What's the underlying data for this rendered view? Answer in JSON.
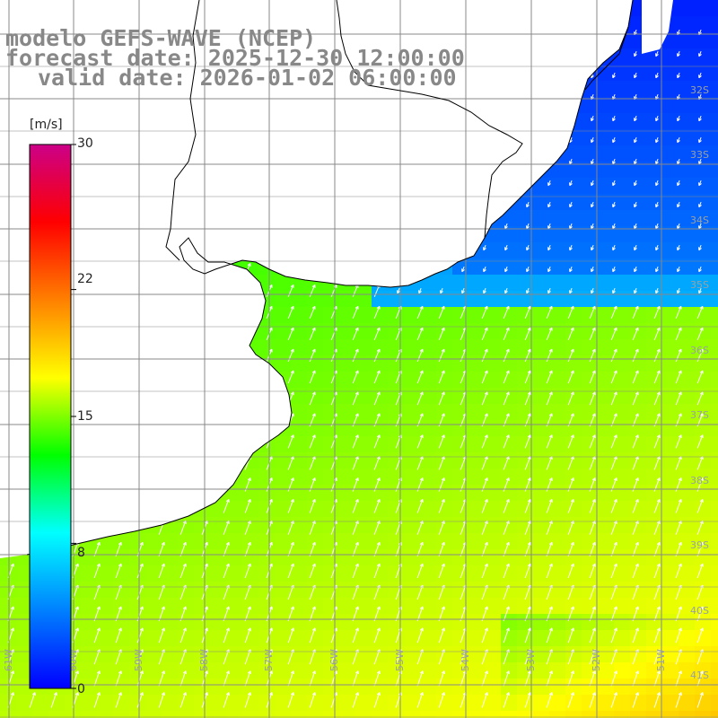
{
  "header": {
    "model_line": "modelo GEFS-WAVE (NCEP)",
    "forecast_line": "forecast date: 2025-12-30 12:00:00",
    "valid_line": "valid date: 2026-01-02 06:00:00"
  },
  "colorbar": {
    "unit": "[m/s]",
    "min": 0,
    "max": 30,
    "tick_labels": [
      "30",
      "22",
      "15",
      "8",
      "0"
    ],
    "tick_values": [
      30,
      22,
      15,
      8,
      0
    ],
    "colors": [
      "#0000ff",
      "#0080ff",
      "#00ffff",
      "#00ff00",
      "#ffff00",
      "#ff8000",
      "#ff0000",
      "#cc0088"
    ]
  },
  "map": {
    "lon_labels": [
      "61W",
      "60W",
      "59W",
      "58W",
      "57W",
      "56W",
      "55W",
      "54W",
      "53W",
      "52W",
      "51W"
    ],
    "lat_labels": [
      "32S",
      "33S",
      "34S",
      "35S",
      "36S",
      "37S",
      "38S",
      "39S",
      "40S",
      "41S"
    ],
    "land_color": "#ffffff",
    "coast_color": "#000000",
    "grid_color": "#888888",
    "arrow_color": "#ffffff",
    "field_description_type": "wind speed with direction arrows",
    "typical_wind_direction": "toward north-east in the south, toward south-west in the north-east"
  }
}
